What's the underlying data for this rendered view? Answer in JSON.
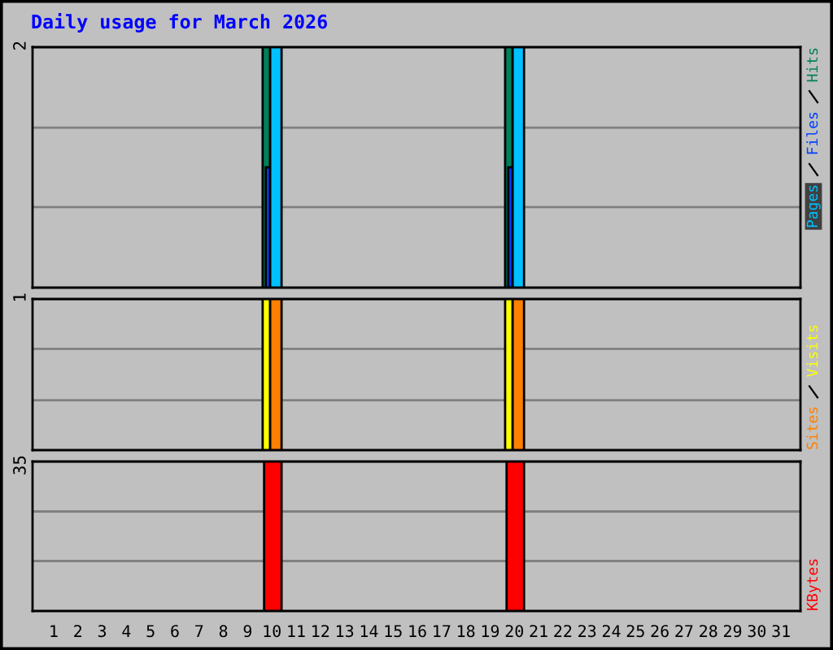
{
  "chart_data": [
    {
      "type": "bar",
      "title": "Daily usage for March 2026",
      "categories": [
        "1",
        "2",
        "3",
        "4",
        "5",
        "6",
        "7",
        "8",
        "9",
        "10",
        "11",
        "12",
        "13",
        "14",
        "15",
        "16",
        "17",
        "18",
        "19",
        "20",
        "21",
        "22",
        "23",
        "24",
        "25",
        "26",
        "27",
        "28",
        "29",
        "30",
        "31"
      ],
      "series": [
        {
          "name": "Hits",
          "color": "#00805c",
          "values": [
            0,
            0,
            0,
            0,
            0,
            0,
            0,
            0,
            0,
            2,
            0,
            0,
            0,
            0,
            0,
            0,
            0,
            0,
            0,
            2,
            0,
            0,
            0,
            0,
            0,
            0,
            0,
            0,
            0,
            0,
            0
          ]
        },
        {
          "name": "Files",
          "color": "#0040ff",
          "values": [
            0,
            0,
            0,
            0,
            0,
            0,
            0,
            0,
            0,
            1,
            0,
            0,
            0,
            0,
            0,
            0,
            0,
            0,
            0,
            1,
            0,
            0,
            0,
            0,
            0,
            0,
            0,
            0,
            0,
            0,
            0
          ]
        },
        {
          "name": "Pages",
          "color": "#00c0ff",
          "values": [
            0,
            0,
            0,
            0,
            0,
            0,
            0,
            0,
            0,
            2,
            0,
            0,
            0,
            0,
            0,
            0,
            0,
            0,
            0,
            2,
            0,
            0,
            0,
            0,
            0,
            0,
            0,
            0,
            0,
            0,
            0
          ]
        }
      ],
      "ylim": [
        0,
        2
      ],
      "yticks": [
        {
          "value": 0.67,
          "label": null
        },
        {
          "value": 1.33,
          "label": null
        },
        2
      ],
      "grid": "y",
      "legend": "right",
      "tick_labels": "y"
    },
    {
      "type": "bar",
      "categories": [
        "1",
        "2",
        "3",
        "4",
        "5",
        "6",
        "7",
        "8",
        "9",
        "10",
        "11",
        "12",
        "13",
        "14",
        "15",
        "16",
        "17",
        "18",
        "19",
        "20",
        "21",
        "22",
        "23",
        "24",
        "25",
        "26",
        "27",
        "28",
        "29",
        "30",
        "31"
      ],
      "series": [
        {
          "name": "Visits",
          "color": "#ffff00",
          "values": [
            0,
            0,
            0,
            0,
            0,
            0,
            0,
            0,
            0,
            1,
            0,
            0,
            0,
            0,
            0,
            0,
            0,
            0,
            0,
            1,
            0,
            0,
            0,
            0,
            0,
            0,
            0,
            0,
            0,
            0,
            0
          ]
        },
        {
          "name": "Sites",
          "color": "#ff8000",
          "values": [
            0,
            0,
            0,
            0,
            0,
            0,
            0,
            0,
            0,
            1,
            0,
            0,
            0,
            0,
            0,
            0,
            0,
            0,
            0,
            1,
            0,
            0,
            0,
            0,
            0,
            0,
            0,
            0,
            0,
            0,
            0
          ]
        }
      ],
      "ylim": [
        0,
        1
      ],
      "yticks": [
        {
          "value": 0.33,
          "label": null
        },
        {
          "value": 0.67,
          "label": null
        },
        1
      ],
      "grid": "y",
      "legend": "right",
      "tick_labels": "y"
    },
    {
      "type": "bar",
      "categories": [
        "1",
        "2",
        "3",
        "4",
        "5",
        "6",
        "7",
        "8",
        "9",
        "10",
        "11",
        "12",
        "13",
        "14",
        "15",
        "16",
        "17",
        "18",
        "19",
        "20",
        "21",
        "22",
        "23",
        "24",
        "25",
        "26",
        "27",
        "28",
        "29",
        "30",
        "31"
      ],
      "series": [
        {
          "name": "KBytes",
          "color": "#ff0000",
          "values": [
            0,
            0,
            0,
            0,
            0,
            0,
            0,
            0,
            0,
            35,
            0,
            0,
            0,
            0,
            0,
            0,
            0,
            0,
            0,
            35,
            0,
            0,
            0,
            0,
            0,
            0,
            0,
            0,
            0,
            0,
            0
          ]
        }
      ],
      "ylim": [
        0,
        35
      ],
      "yticks": [
        {
          "value": 11.7,
          "label": null
        },
        {
          "value": 23.3,
          "label": null
        },
        35
      ],
      "grid": "y",
      "legend": "right"
    }
  ]
}
